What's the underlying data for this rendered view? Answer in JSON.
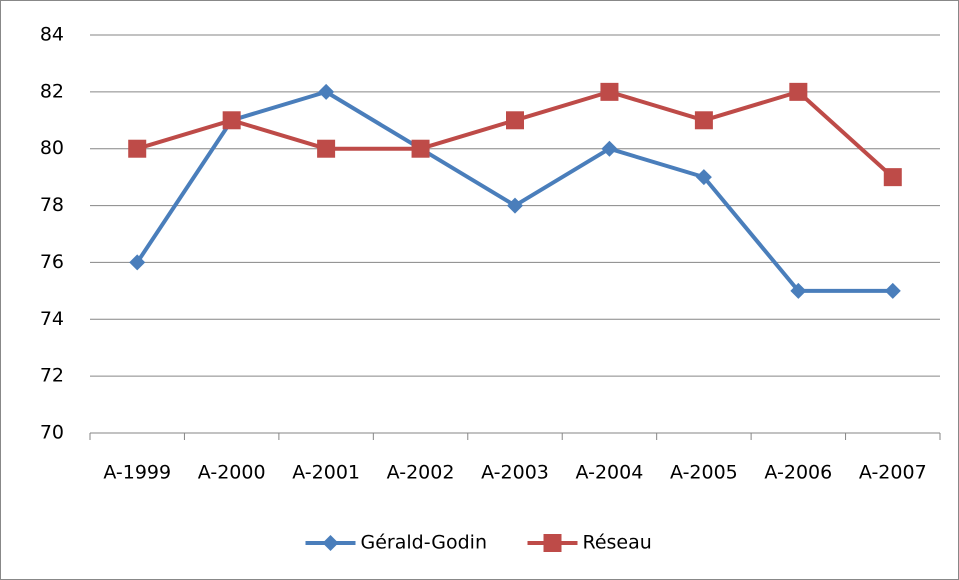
{
  "chart_data": {
    "type": "line",
    "categories": [
      "A-1999",
      "A-2000",
      "A-2001",
      "A-2002",
      "A-2003",
      "A-2004",
      "A-2005",
      "A-2006",
      "A-2007"
    ],
    "series": [
      {
        "name": "Gérald-Godin",
        "color": "#4a7ebb",
        "marker": "diamond",
        "values": [
          76,
          81,
          82,
          80,
          78,
          80,
          79,
          75,
          75
        ]
      },
      {
        "name": "Réseau",
        "color": "#be4b48",
        "marker": "square",
        "values": [
          80,
          81,
          80,
          80,
          81,
          82,
          81,
          82,
          79
        ]
      }
    ],
    "ylim": [
      70,
      84
    ],
    "yticks": [
      70,
      72,
      74,
      76,
      78,
      80,
      82,
      84
    ],
    "grid": true,
    "legend": "bottom"
  }
}
